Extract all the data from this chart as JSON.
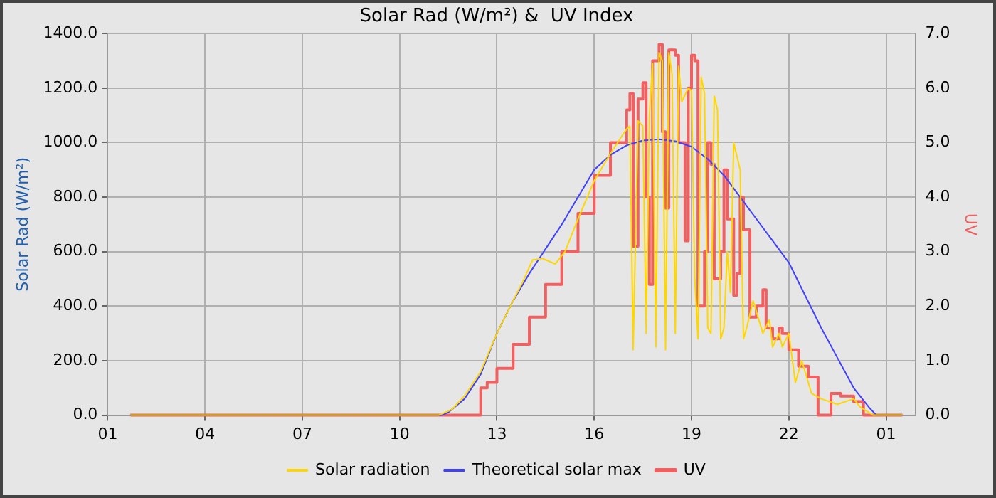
{
  "chart_data": {
    "type": "line",
    "title": "Solar Rad (W/m²) &  UV Index",
    "ylabel": "Solar Rad (W/m²)",
    "y2label": "UV",
    "xlim": [
      "--06-01T01:00",
      "--06-02T01:54"
    ],
    "xticks": [
      {
        "value": "--06-01T01:00",
        "label": "01"
      },
      {
        "value": "--06-01T04:00",
        "label": "04"
      },
      {
        "value": "--06-01T07:00",
        "label": "07"
      },
      {
        "value": "--06-01T10:00",
        "label": "10"
      },
      {
        "value": "--06-01T13:00",
        "label": "13"
      },
      {
        "value": "--06-01T16:00",
        "label": "16"
      },
      {
        "value": "--06-01T19:00",
        "label": "19"
      },
      {
        "value": "--06-01T22:00",
        "label": "22"
      },
      {
        "value": "--06-02T01:00",
        "label": "01"
      }
    ],
    "ylim": [
      0,
      1400
    ],
    "yticks": [
      {
        "value": 0,
        "label": "0.0"
      },
      {
        "value": 200,
        "label": "200.0"
      },
      {
        "value": 400,
        "label": "400.0"
      },
      {
        "value": 600,
        "label": "600.0"
      },
      {
        "value": 800,
        "label": "800.0"
      },
      {
        "value": 1000,
        "label": "1000.0"
      },
      {
        "value": 1200,
        "label": "1200.0"
      },
      {
        "value": 1400,
        "label": "1400.0"
      }
    ],
    "y2lim": [
      0,
      7
    ],
    "y2ticks": [
      {
        "value": 0,
        "label": "0.0"
      },
      {
        "value": 1,
        "label": "1.0"
      },
      {
        "value": 2,
        "label": "2.0"
      },
      {
        "value": 3,
        "label": "3.0"
      },
      {
        "value": 4,
        "label": "4.0"
      },
      {
        "value": 5,
        "label": "5.0"
      },
      {
        "value": 6,
        "label": "6.0"
      },
      {
        "value": 7,
        "label": "7.0"
      }
    ],
    "grid": true,
    "legend": "bottom",
    "marker": "none",
    "series": [
      {
        "name": "Solar radiation",
        "color": "#ffd700",
        "x": [
          "--06-01T01:42",
          "--06-01T11:12",
          "--06-01T11:36",
          "--06-01T12:00",
          "--06-01T12:30",
          "--06-01T13:00",
          "--06-01T13:30",
          "--06-01T13:48",
          "--06-01T14:06",
          "--06-01T14:24",
          "--06-01T14:48",
          "--06-01T15:06",
          "--06-01T15:30",
          "--06-01T16:00",
          "--06-01T16:30",
          "--06-01T17:00",
          "--06-01T17:06",
          "--06-01T17:12",
          "--06-01T17:21",
          "--06-01T17:30",
          "--06-01T17:36",
          "--06-01T17:42",
          "--06-01T17:48",
          "--06-01T17:54",
          "--06-01T18:00",
          "--06-01T18:06",
          "--06-01T18:12",
          "--06-01T18:18",
          "--06-01T18:24",
          "--06-01T18:30",
          "--06-01T18:36",
          "--06-01T18:42",
          "--06-01T18:54",
          "--06-01T19:00",
          "--06-01T19:06",
          "--06-01T19:12",
          "--06-01T19:18",
          "--06-01T19:24",
          "--06-01T19:30",
          "--06-01T19:36",
          "--06-01T19:42",
          "--06-01T19:48",
          "--06-01T19:54",
          "--06-01T20:00",
          "--06-01T20:06",
          "--06-01T20:12",
          "--06-01T20:18",
          "--06-01T20:30",
          "--06-01T20:36",
          "--06-01T20:42",
          "--06-01T20:54",
          "--06-01T21:06",
          "--06-01T21:12",
          "--06-01T21:24",
          "--06-01T21:30",
          "--06-01T21:42",
          "--06-01T21:48",
          "--06-01T22:00",
          "--06-01T22:12",
          "--06-01T22:24",
          "--06-01T22:42",
          "--06-01T23:00",
          "--06-01T23:30",
          "--06-02T00:00",
          "--06-02T00:12",
          "--06-02T00:36",
          "--06-02T01:30"
        ],
        "values": [
          0,
          0,
          20,
          70,
          160,
          300,
          420,
          490,
          570,
          575,
          555,
          600,
          720,
          860,
          960,
          1050,
          1060,
          240,
          1080,
          1060,
          300,
          1100,
          1290,
          250,
          1330,
          1300,
          240,
          1330,
          1250,
          300,
          1280,
          1150,
          1200,
          1190,
          500,
          280,
          1240,
          1180,
          320,
          300,
          1170,
          1120,
          280,
          320,
          600,
          450,
          1000,
          900,
          280,
          320,
          420,
          340,
          300,
          350,
          250,
          300,
          250,
          300,
          120,
          200,
          80,
          60,
          40,
          60,
          30,
          0,
          0
        ]
      },
      {
        "name": "Theoretical solar max",
        "color": "#4040ff",
        "x": [
          "--06-01T01:42",
          "--06-01T11:18",
          "--06-01T11:30",
          "--06-01T12:00",
          "--06-01T12:30",
          "--06-01T13:00",
          "--06-01T13:30",
          "--06-01T14:00",
          "--06-01T14:30",
          "--06-01T15:00",
          "--06-01T15:30",
          "--06-01T16:00",
          "--06-01T16:30",
          "--06-01T17:00",
          "--06-01T17:30",
          "--06-01T18:00",
          "--06-01T18:30",
          "--06-01T19:00",
          "--06-01T19:30",
          "--06-01T20:00",
          "--06-01T20:30",
          "--06-01T21:00",
          "--06-01T21:30",
          "--06-01T22:00",
          "--06-01T22:30",
          "--06-01T23:00",
          "--06-01T23:30",
          "--06-02T00:00",
          "--06-02T00:30",
          "--06-02T00:42",
          "--06-02T01:30"
        ],
        "values": [
          0,
          0,
          10,
          60,
          150,
          300,
          420,
          520,
          610,
          700,
          800,
          900,
          955,
          990,
          1008,
          1012,
          1005,
          985,
          940,
          880,
          800,
          720,
          640,
          560,
          440,
          320,
          210,
          100,
          25,
          0,
          0
        ]
      },
      {
        "name": "UV",
        "color": "#f06060",
        "type": "step",
        "axis": "y2",
        "x": [
          "--06-01T01:42",
          "--06-01T12:30",
          "--06-01T12:42",
          "--06-01T13:00",
          "--06-01T13:30",
          "--06-01T14:00",
          "--06-01T14:30",
          "--06-01T15:00",
          "--06-01T15:30",
          "--06-01T16:00",
          "--06-01T16:30",
          "--06-01T17:00",
          "--06-01T17:06",
          "--06-01T17:12",
          "--06-01T17:21",
          "--06-01T17:30",
          "--06-01T17:36",
          "--06-01T17:42",
          "--06-01T17:48",
          "--06-01T18:00",
          "--06-01T18:06",
          "--06-01T18:12",
          "--06-01T18:18",
          "--06-01T18:30",
          "--06-01T18:36",
          "--06-01T18:48",
          "--06-01T18:54",
          "--06-01T19:00",
          "--06-01T19:06",
          "--06-01T19:12",
          "--06-01T19:24",
          "--06-01T19:30",
          "--06-01T19:36",
          "--06-01T19:42",
          "--06-01T19:54",
          "--06-01T20:00",
          "--06-01T20:06",
          "--06-01T20:18",
          "--06-01T20:24",
          "--06-01T20:30",
          "--06-01T20:36",
          "--06-01T20:48",
          "--06-01T21:00",
          "--06-01T21:12",
          "--06-01T21:18",
          "--06-01T21:30",
          "--06-01T21:42",
          "--06-01T21:48",
          "--06-01T22:00",
          "--06-01T22:18",
          "--06-01T22:36",
          "--06-01T22:54",
          "--06-01T23:18",
          "--06-01T23:36",
          "--06-02T00:00",
          "--06-02T00:18",
          "--06-02T01:30"
        ],
        "values": [
          0,
          0.5,
          0.6,
          0.86,
          1.3,
          1.8,
          2.4,
          3.0,
          3.7,
          4.4,
          5.0,
          5.6,
          5.9,
          3.1,
          5.8,
          6.1,
          4.0,
          2.4,
          6.5,
          6.8,
          5.2,
          3.8,
          6.7,
          6.6,
          5.0,
          3.2,
          6.0,
          6.6,
          6.5,
          2.0,
          3.0,
          5.0,
          4.6,
          2.5,
          3.0,
          4.5,
          3.6,
          2.2,
          2.6,
          4.0,
          3.4,
          1.8,
          2.0,
          2.3,
          1.6,
          1.4,
          1.6,
          1.5,
          1.2,
          0.9,
          0.7,
          0,
          0.4,
          0.35,
          0.25,
          0,
          0
        ]
      }
    ]
  }
}
